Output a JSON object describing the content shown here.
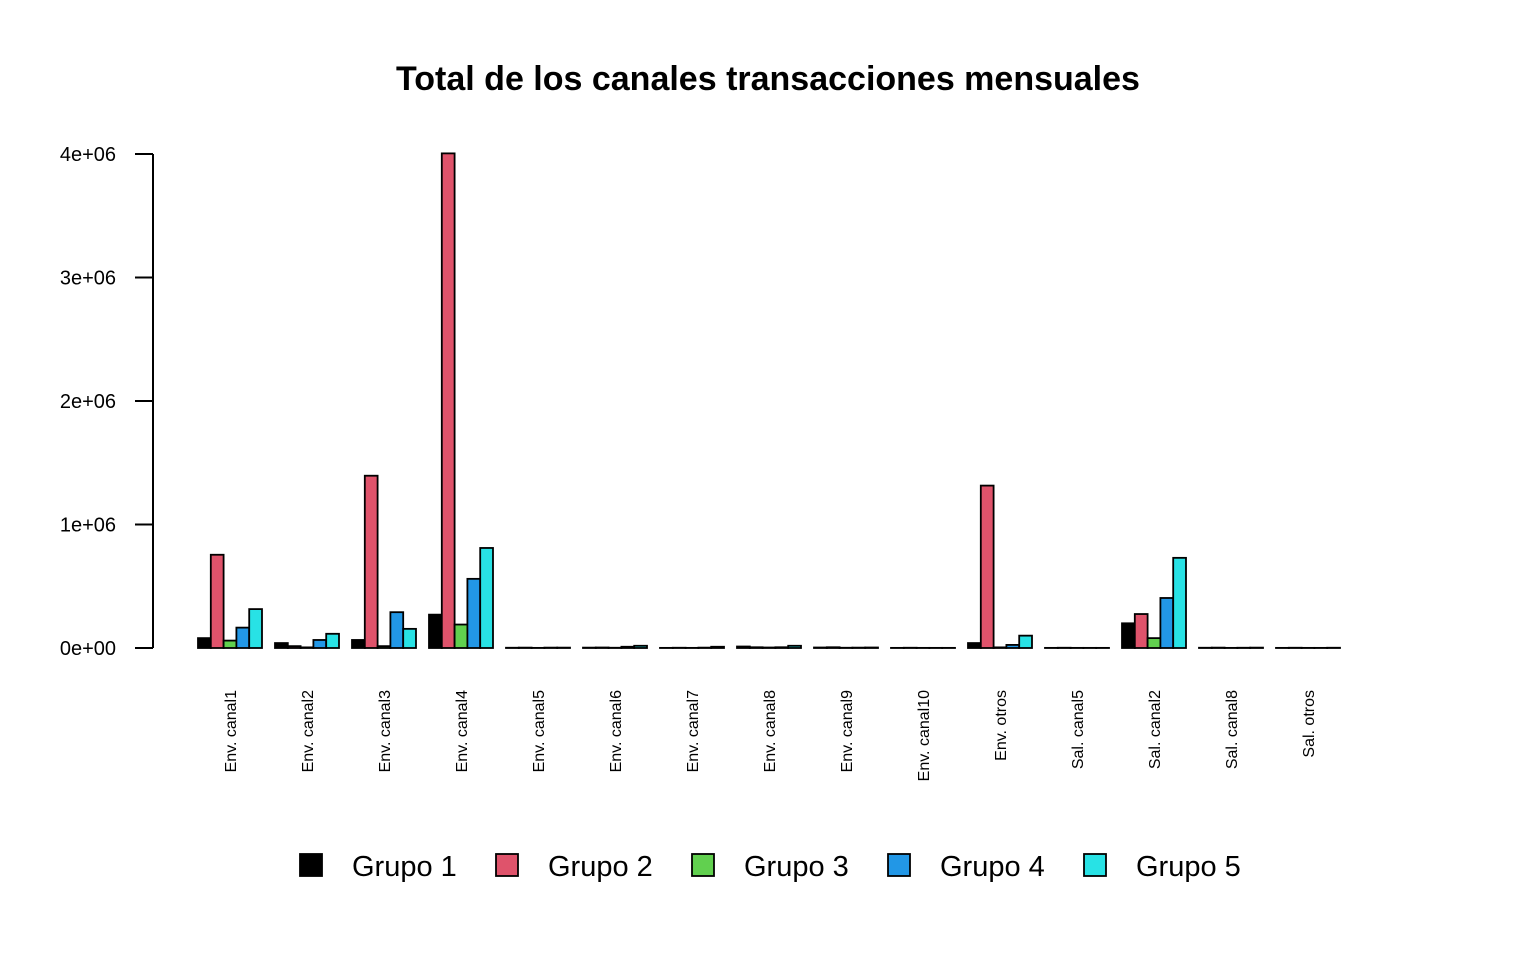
{
  "chart_data": {
    "type": "bar",
    "title": "Total de los canales transacciones mensuales",
    "xlabel": "",
    "ylabel": "",
    "ylim": [
      0,
      4000000
    ],
    "yticks": [
      0,
      1000000,
      2000000,
      3000000,
      4000000
    ],
    "ytick_labels": [
      "0e+00",
      "1e+06",
      "2e+06",
      "3e+06",
      "4e+06"
    ],
    "categories": [
      "Env. canal1",
      "Env. canal2",
      "Env. canal3",
      "Env. canal4",
      "Env. canal5",
      "Env. canal6",
      "Env. canal7",
      "Env. canal8",
      "Env. canal9",
      "Env. canal10",
      "Env. otros",
      "Sal. canal5",
      "Sal. canal2",
      "Sal. canal8",
      "Sal. otros"
    ],
    "legend_position": "bottom",
    "grid": false,
    "series": [
      {
        "name": "Grupo 1",
        "color": "#000000",
        "values": [
          80000,
          40000,
          65000,
          270000,
          2000,
          3000,
          1000,
          12000,
          4000,
          1000,
          40000,
          1000,
          200000,
          2000,
          1000
        ]
      },
      {
        "name": "Grupo 2",
        "color": "#DF536B",
        "values": [
          755000,
          15000,
          1395000,
          4005000,
          3000,
          4000,
          2000,
          6000,
          6000,
          2000,
          1315000,
          2000,
          275000,
          3000,
          2000
        ]
      },
      {
        "name": "Grupo 3",
        "color": "#61D04F",
        "values": [
          60000,
          5000,
          15000,
          190000,
          1000,
          2000,
          1000,
          4000,
          2000,
          1000,
          5000,
          1000,
          80000,
          1000,
          1000
        ]
      },
      {
        "name": "Grupo 4",
        "color": "#2297E6",
        "values": [
          165000,
          65000,
          290000,
          560000,
          3000,
          10000,
          3000,
          6000,
          3000,
          1000,
          25000,
          1000,
          405000,
          2000,
          1000
        ]
      },
      {
        "name": "Grupo 5",
        "color": "#28E2E5",
        "values": [
          315000,
          115000,
          155000,
          810000,
          3000,
          18000,
          10000,
          18000,
          4000,
          1000,
          100000,
          1000,
          730000,
          3000,
          2000
        ]
      }
    ]
  }
}
